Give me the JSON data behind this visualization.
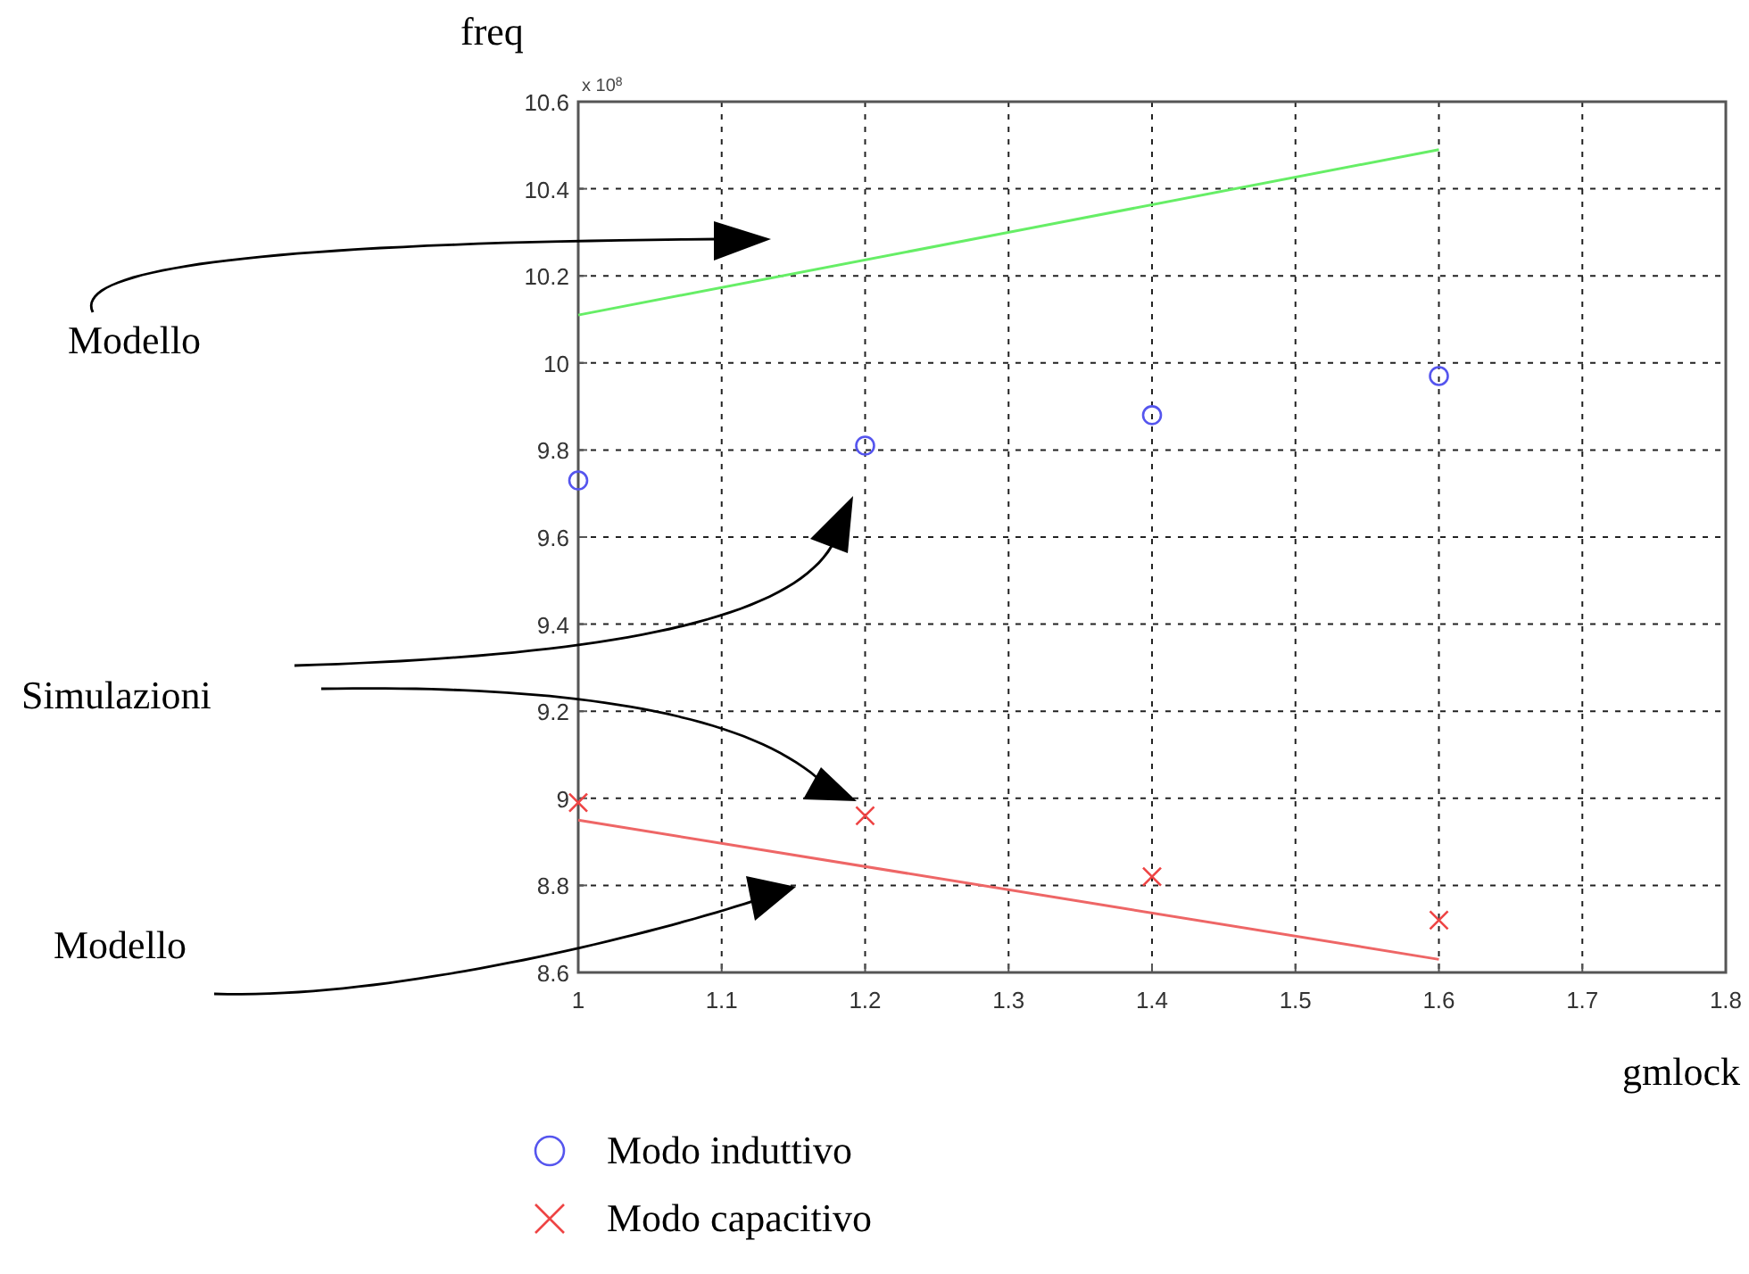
{
  "chart_data": {
    "type": "scatter",
    "ylabel": "freq",
    "xlabel": "gmlock",
    "xlim": [
      1,
      1.8
    ],
    "xticks": [
      1,
      1.1,
      1.2,
      1.3,
      1.4,
      1.5,
      1.6,
      1.7,
      1.8
    ],
    "ylim": [
      8.6,
      10.6
    ],
    "yticks": [
      8.6,
      8.8,
      9,
      9.2,
      9.4,
      9.6,
      9.8,
      10,
      10.2,
      10.4,
      10.6
    ],
    "grid": true,
    "legend": "bottom",
    "annotations": [
      "x 10$^{8}$",
      "Modello",
      "Simulazioni",
      "Modello"
    ],
    "series": [
      {
        "type": "line",
        "color": "#66ee66",
        "x": [
          1,
          1.6
        ],
        "values": [
          10.11,
          10.49
        ],
        "marker": "none"
      },
      {
        "name": "Modo induttivo",
        "color": "#5555ee",
        "x": [
          1,
          1.2,
          1.4,
          1.6
        ],
        "values": [
          9.73,
          9.81,
          9.88,
          9.97
        ],
        "marker": "circle"
      },
      {
        "type": "line",
        "color": "#ee6666",
        "x": [
          1,
          1.6
        ],
        "values": [
          8.95,
          8.63
        ],
        "marker": "none"
      },
      {
        "name": "Modo capacitivo",
        "color": "#ee4444",
        "x": [
          1,
          1.2,
          1.4,
          1.6
        ],
        "values": [
          8.99,
          8.96,
          8.82,
          8.72
        ],
        "marker": "cross"
      }
    ]
  }
}
